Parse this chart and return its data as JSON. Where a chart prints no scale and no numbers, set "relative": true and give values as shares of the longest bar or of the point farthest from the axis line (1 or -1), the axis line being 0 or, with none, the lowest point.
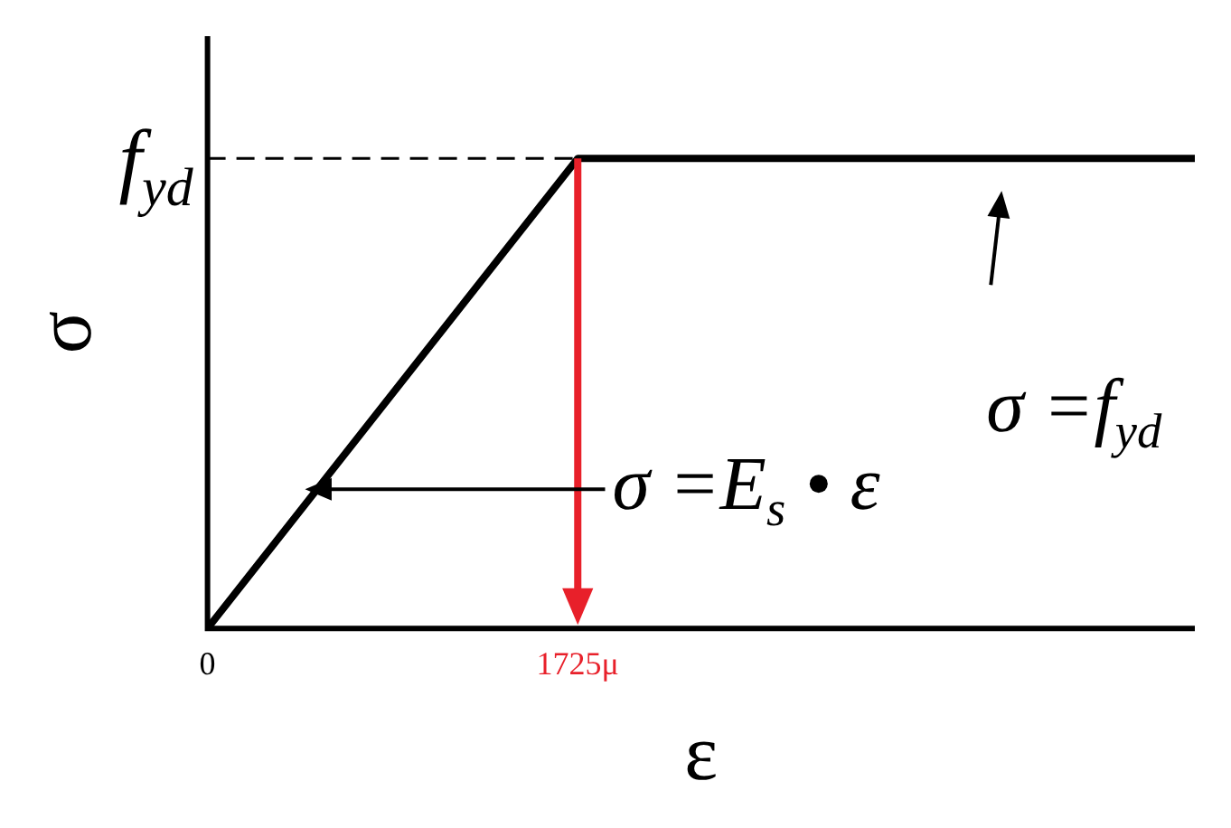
{
  "chart_data": {
    "type": "line",
    "relative": true,
    "xlabel": "ε",
    "ylabel": "σ",
    "x": [
      0,
      1725,
      4600
    ],
    "xlim": [
      0,
      4600
    ],
    "xticks": [
      0,
      {
        "value": 1725,
        "label": "1725μ"
      }
    ],
    "series": [
      {
        "color": "#000000",
        "values": [
          0,
          1,
          1
        ]
      }
    ],
    "ref_lines": [
      {
        "axis": "y",
        "value": 1,
        "label": "f$_{yd}$",
        "line_style": "dashed",
        "color": "#000000"
      },
      {
        "axis": "x",
        "value": 1725,
        "color": "#e8202a"
      }
    ],
    "annotations": [
      {
        "text": "σ =f$_{yd}$",
        "x": 3700,
        "y": 1
      },
      "σ =E$_{s}$ • ε"
    ],
    "grid": false,
    "legend": false,
    "marker": "none",
    "line_style": "solid"
  }
}
